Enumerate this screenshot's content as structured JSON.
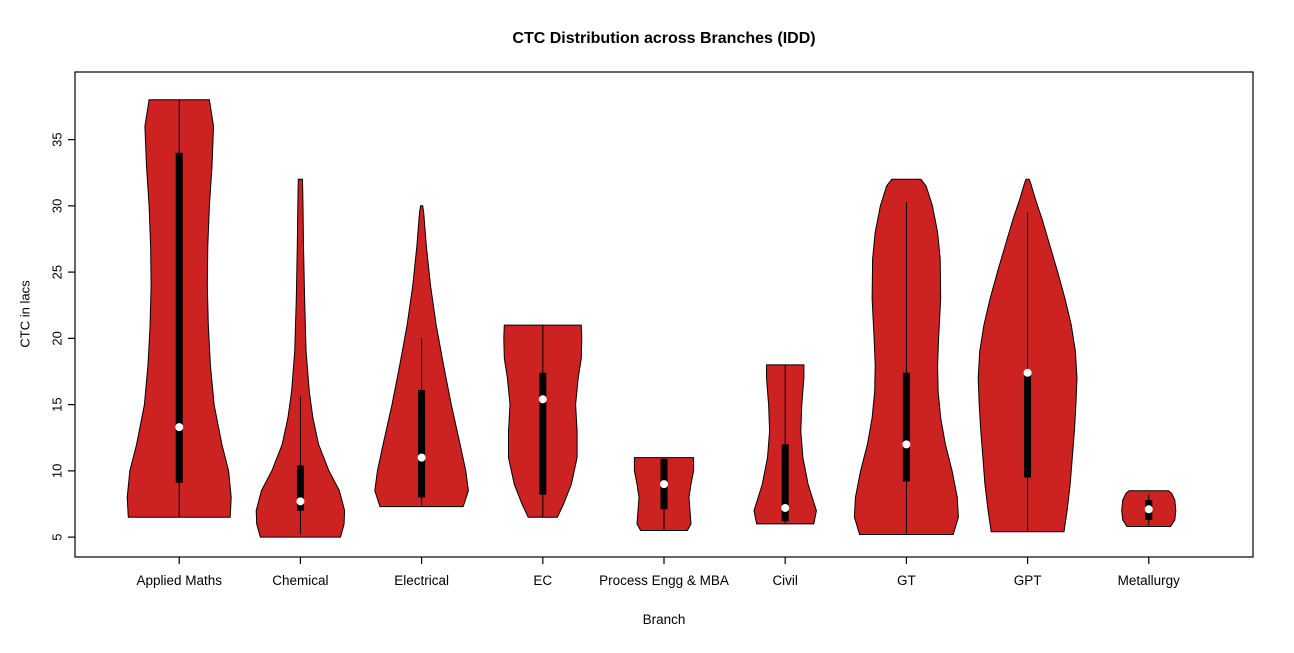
{
  "chart_data": {
    "type": "violin",
    "title": "CTC Distribution across Branches (IDD)",
    "xlabel": "Branch",
    "ylabel": "CTC in lacs",
    "ylim": [
      3.5,
      40.1
    ],
    "xlim": [
      0.14,
      9.86
    ],
    "yticks": [
      5,
      10,
      15,
      20,
      25,
      30,
      35
    ],
    "fill_color": "#CC2222",
    "outline_color": "#000000",
    "box_color": "#000000",
    "median_dot_color": "#ffffff",
    "grid": false,
    "legend": "none",
    "categories": [
      "Applied Maths",
      "Chemical",
      "Electrical",
      "EC",
      "Process Engg & MBA",
      "Civil",
      "GT",
      "GPT",
      "Metallurgy"
    ],
    "series": [
      {
        "name": "Applied Maths",
        "min": 6.5,
        "max": 38,
        "median": 13.3,
        "q1": 9.1,
        "q3": 34,
        "whisker_low": 6.5,
        "whisker_high": 38,
        "shape": [
          [
            6.5,
            0.98
          ],
          [
            8,
            1.0
          ],
          [
            10,
            0.95
          ],
          [
            12,
            0.82
          ],
          [
            15,
            0.67
          ],
          [
            18,
            0.6
          ],
          [
            21,
            0.56
          ],
          [
            24,
            0.54
          ],
          [
            27,
            0.55
          ],
          [
            30,
            0.58
          ],
          [
            33,
            0.63
          ],
          [
            36,
            0.66
          ],
          [
            38,
            0.58
          ]
        ]
      },
      {
        "name": "Chemical",
        "min": 5,
        "max": 32,
        "median": 7.7,
        "q1": 7.0,
        "q3": 10.4,
        "whisker_low": 5.2,
        "whisker_high": 15.6,
        "shape": [
          [
            5,
            0.77
          ],
          [
            6,
            0.84
          ],
          [
            7,
            0.85
          ],
          [
            8.5,
            0.75
          ],
          [
            10,
            0.55
          ],
          [
            12,
            0.35
          ],
          [
            14,
            0.24
          ],
          [
            16,
            0.17
          ],
          [
            19,
            0.11
          ],
          [
            23,
            0.08
          ],
          [
            27,
            0.06
          ],
          [
            30,
            0.05
          ],
          [
            32,
            0.04
          ]
        ]
      },
      {
        "name": "Electrical",
        "min": 7.3,
        "max": 30,
        "median": 11.0,
        "q1": 8.0,
        "q3": 16.1,
        "whisker_low": 7.4,
        "whisker_high": 20.0,
        "shape": [
          [
            7.3,
            0.8
          ],
          [
            8.5,
            0.9
          ],
          [
            10,
            0.85
          ],
          [
            12,
            0.74
          ],
          [
            15,
            0.57
          ],
          [
            18,
            0.42
          ],
          [
            21,
            0.28
          ],
          [
            24,
            0.17
          ],
          [
            27,
            0.09
          ],
          [
            29.5,
            0.04
          ],
          [
            30,
            0.02
          ]
        ]
      },
      {
        "name": "EC",
        "min": 6.5,
        "max": 21,
        "median": 15.4,
        "q1": 8.2,
        "q3": 17.4,
        "whisker_low": 6.5,
        "whisker_high": 21,
        "shape": [
          [
            6.5,
            0.28
          ],
          [
            7.5,
            0.4
          ],
          [
            9,
            0.55
          ],
          [
            11,
            0.66
          ],
          [
            13,
            0.66
          ],
          [
            15,
            0.63
          ],
          [
            17,
            0.68
          ],
          [
            18.5,
            0.74
          ],
          [
            20,
            0.75
          ],
          [
            21,
            0.74
          ]
        ]
      },
      {
        "name": "Process Engg & MBA",
        "min": 5.5,
        "max": 11,
        "median": 9.0,
        "q1": 7.1,
        "q3": 10.9,
        "whisker_low": 5.6,
        "whisker_high": 11,
        "shape": [
          [
            5.5,
            0.45
          ],
          [
            6,
            0.52
          ],
          [
            7,
            0.5
          ],
          [
            8,
            0.48
          ],
          [
            9,
            0.52
          ],
          [
            10,
            0.57
          ],
          [
            11,
            0.57
          ]
        ]
      },
      {
        "name": "Civil",
        "min": 6,
        "max": 18,
        "median": 7.2,
        "q1": 6.2,
        "q3": 12.0,
        "whisker_low": 6,
        "whisker_high": 18,
        "shape": [
          [
            6,
            0.55
          ],
          [
            7,
            0.6
          ],
          [
            8,
            0.52
          ],
          [
            9,
            0.44
          ],
          [
            11,
            0.34
          ],
          [
            13,
            0.3
          ],
          [
            15,
            0.32
          ],
          [
            17,
            0.36
          ],
          [
            18,
            0.36
          ]
        ]
      },
      {
        "name": "GT",
        "min": 5.2,
        "max": 32,
        "median": 12.0,
        "q1": 9.2,
        "q3": 17.4,
        "whisker_low": 5.3,
        "whisker_high": 30.3,
        "shape": [
          [
            5.2,
            0.9
          ],
          [
            6.5,
            1.0
          ],
          [
            8,
            0.98
          ],
          [
            10,
            0.88
          ],
          [
            12,
            0.75
          ],
          [
            14,
            0.66
          ],
          [
            16,
            0.61
          ],
          [
            18,
            0.6
          ],
          [
            20,
            0.62
          ],
          [
            23,
            0.66
          ],
          [
            26,
            0.65
          ],
          [
            28,
            0.6
          ],
          [
            30,
            0.5
          ],
          [
            31.5,
            0.38
          ],
          [
            32,
            0.28
          ]
        ]
      },
      {
        "name": "GPT",
        "min": 5.4,
        "max": 32,
        "median": 17.4,
        "q1": 9.5,
        "q3": 17.5,
        "whisker_low": 5.5,
        "whisker_high": 29.5,
        "shape": [
          [
            5.4,
            0.7
          ],
          [
            7,
            0.76
          ],
          [
            9,
            0.82
          ],
          [
            11,
            0.86
          ],
          [
            13,
            0.9
          ],
          [
            15,
            0.93
          ],
          [
            17,
            0.95
          ],
          [
            19,
            0.92
          ],
          [
            21,
            0.84
          ],
          [
            23,
            0.72
          ],
          [
            25,
            0.58
          ],
          [
            27,
            0.43
          ],
          [
            29,
            0.28
          ],
          [
            30.5,
            0.15
          ],
          [
            31.7,
            0.06
          ],
          [
            32,
            0.03
          ]
        ]
      },
      {
        "name": "Metallurgy",
        "min": 5.8,
        "max": 8.5,
        "median": 7.1,
        "q1": 6.3,
        "q3": 7.8,
        "whisker_low": 5.9,
        "whisker_high": 8.2,
        "shape": [
          [
            5.8,
            0.42
          ],
          [
            6.3,
            0.5
          ],
          [
            7,
            0.52
          ],
          [
            7.8,
            0.5
          ],
          [
            8.3,
            0.44
          ],
          [
            8.5,
            0.38
          ]
        ]
      }
    ]
  }
}
